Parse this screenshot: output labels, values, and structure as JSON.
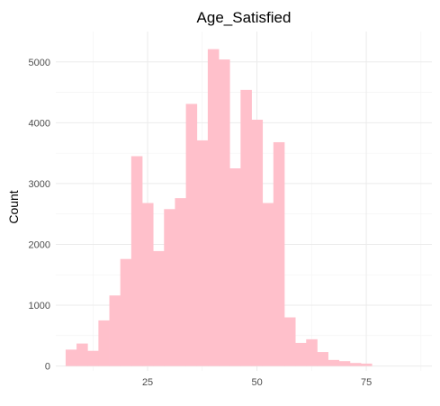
{
  "chart_data": {
    "type": "bar",
    "title": "Age_Satisfied",
    "xlabel": "",
    "ylabel": "Count",
    "bar_color": "#FFC0CB",
    "background": "#ffffff",
    "grid": true,
    "xlim": [
      4,
      90
    ],
    "ylim": [
      -80,
      5500
    ],
    "x_ticks": [
      25,
      50,
      75
    ],
    "x_tick_labels": [
      "25",
      "50",
      "75"
    ],
    "x_minor_ticks": [
      12.5,
      37.5,
      62.5,
      87.5
    ],
    "y_ticks": [
      0,
      1000,
      2000,
      3000,
      4000,
      5000
    ],
    "y_tick_labels": [
      "0",
      "1000",
      "2000",
      "3000",
      "4000",
      "5000"
    ],
    "y_minor_ticks": [
      500,
      1500,
      2500,
      3500,
      4500
    ],
    "bin_width": 2.5,
    "bin_centers": [
      7.5,
      10,
      12.5,
      15,
      17.5,
      20,
      22.5,
      25,
      27.5,
      30,
      32.5,
      35,
      37.5,
      40,
      42.5,
      45,
      47.5,
      50,
      52.5,
      55,
      57.5,
      60,
      62.5,
      65,
      67.5,
      70,
      72.5,
      75,
      77.5,
      80
    ],
    "values": [
      270,
      370,
      250,
      750,
      1160,
      1760,
      3450,
      2680,
      1890,
      2580,
      2760,
      4310,
      3710,
      5210,
      5040,
      3250,
      4540,
      4050,
      2680,
      3680,
      800,
      380,
      440,
      230,
      100,
      80,
      50,
      40,
      0,
      0
    ]
  }
}
